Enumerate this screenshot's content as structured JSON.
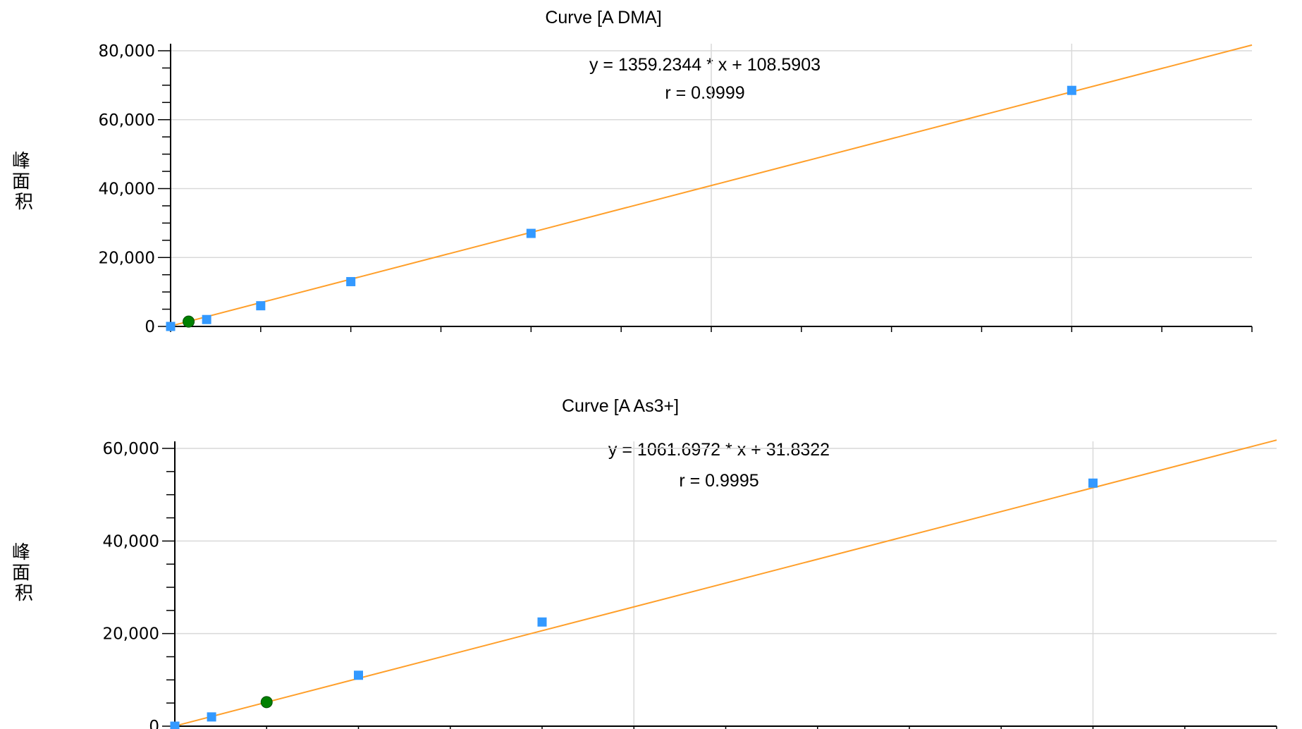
{
  "chart_data": [
    {
      "type": "scatter",
      "title": "Curve [A DMA]",
      "ylabel": "峰面积",
      "ylim": [
        0,
        80000
      ],
      "yticks": [
        0,
        20000,
        40000,
        60000,
        80000
      ],
      "ytick_labels": [
        "0",
        "20,000",
        "40,000",
        "60,000",
        "80,000"
      ],
      "xlim": [
        0,
        60
      ],
      "x_grid": [
        30,
        50
      ],
      "equation": "y = 1359.2344 * x  + 108.5903",
      "r_text": "r = 0.9999",
      "fit": {
        "slope": 1359.2344,
        "intercept": 108.5903
      },
      "series": [
        {
          "points": [
            [
              0,
              0
            ],
            [
              2,
              2000
            ],
            [
              5,
              6000
            ],
            [
              10,
              13000
            ],
            [
              20,
              27000
            ],
            [
              50,
              68500
            ]
          ],
          "color": "#3399ff",
          "marker": "square"
        },
        {
          "points": [
            [
              1,
              1400
            ]
          ],
          "color": "#008000",
          "marker": "circle"
        }
      ],
      "line_color": "#ff9f2a",
      "grid": true
    },
    {
      "type": "scatter",
      "title": "Curve [A As3+]",
      "ylabel": "峰面积",
      "ylim": [
        0,
        60000
      ],
      "yticks": [
        0,
        20000,
        40000,
        60000
      ],
      "ytick_labels": [
        "0",
        "20,000",
        "40,000",
        "60,000"
      ],
      "xlim": [
        0,
        60
      ],
      "x_grid": [
        25,
        50
      ],
      "equation": "y = 1061.6972 * x  + 31.8322",
      "r_text": "r = 0.9995",
      "fit": {
        "slope": 1061.6972,
        "intercept": 31.8322
      },
      "series": [
        {
          "points": [
            [
              0,
              0
            ],
            [
              2,
              2000
            ],
            [
              10,
              11000
            ],
            [
              20,
              22500
            ],
            [
              50,
              52500
            ]
          ],
          "color": "#3399ff",
          "marker": "square"
        },
        {
          "points": [
            [
              5,
              5200
            ]
          ],
          "color": "#008000",
          "marker": "circle"
        }
      ],
      "line_color": "#ff9f2a",
      "grid": true
    }
  ]
}
